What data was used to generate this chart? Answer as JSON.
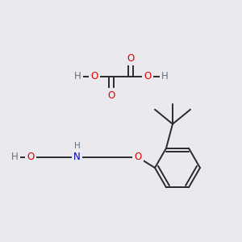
{
  "bg_color": "#eaeaee",
  "bond_color": "#2a2a2a",
  "atom_colors": {
    "O": "#dd0000",
    "N": "#0000bb",
    "H": "#607080",
    "C": "#2a2a2a"
  },
  "fig_w": 3.0,
  "fig_h": 3.0,
  "dpi": 100
}
